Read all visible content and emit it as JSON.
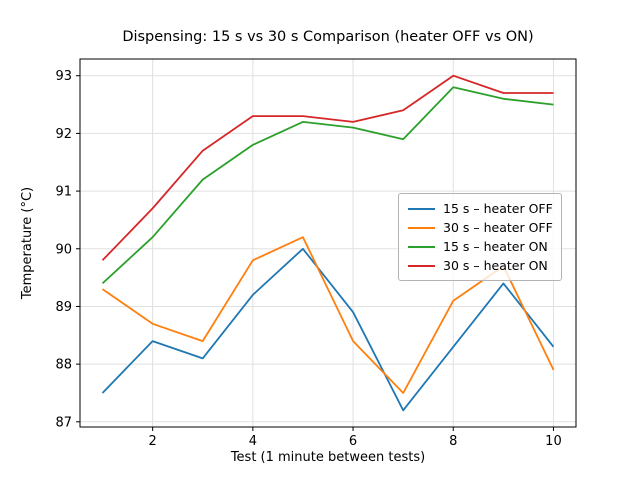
{
  "chart_data": {
    "type": "line",
    "title": "Dispensing: 15 s vs 30 s Comparison (heater OFF vs ON)",
    "xlabel": "Test (1 minute between tests)",
    "ylabel": "Temperature (°C)",
    "x": [
      1,
      2,
      3,
      4,
      5,
      6,
      7,
      8,
      9,
      10
    ],
    "series": [
      {
        "name": "15 s – heater OFF",
        "color": "#1f77b4",
        "values": [
          87.5,
          88.4,
          88.1,
          89.2,
          90.0,
          88.9,
          87.2,
          88.3,
          89.4,
          88.3
        ]
      },
      {
        "name": "30 s – heater OFF",
        "color": "#ff7f0e",
        "values": [
          89.3,
          88.7,
          88.4,
          89.8,
          90.2,
          88.4,
          87.5,
          89.1,
          89.7,
          87.9
        ]
      },
      {
        "name": "15 s – heater ON",
        "color": "#2ca02c",
        "values": [
          89.4,
          90.2,
          91.2,
          91.8,
          92.2,
          92.1,
          91.9,
          92.8,
          92.6,
          92.5
        ]
      },
      {
        "name": "30 s – heater ON",
        "color": "#d62728",
        "values": [
          89.8,
          90.7,
          91.7,
          92.3,
          92.3,
          92.2,
          92.4,
          93.0,
          92.7,
          92.7
        ]
      }
    ],
    "xlim": [
      0.55,
      10.45
    ],
    "ylim": [
      86.91,
      93.29
    ],
    "xticks": [
      2,
      4,
      6,
      8,
      10
    ],
    "yticks": [
      87,
      88,
      89,
      90,
      91,
      92,
      93
    ],
    "grid": true,
    "grid_color": "#e0e0e0",
    "spine_color": "#000000",
    "legend_position": "center right"
  }
}
